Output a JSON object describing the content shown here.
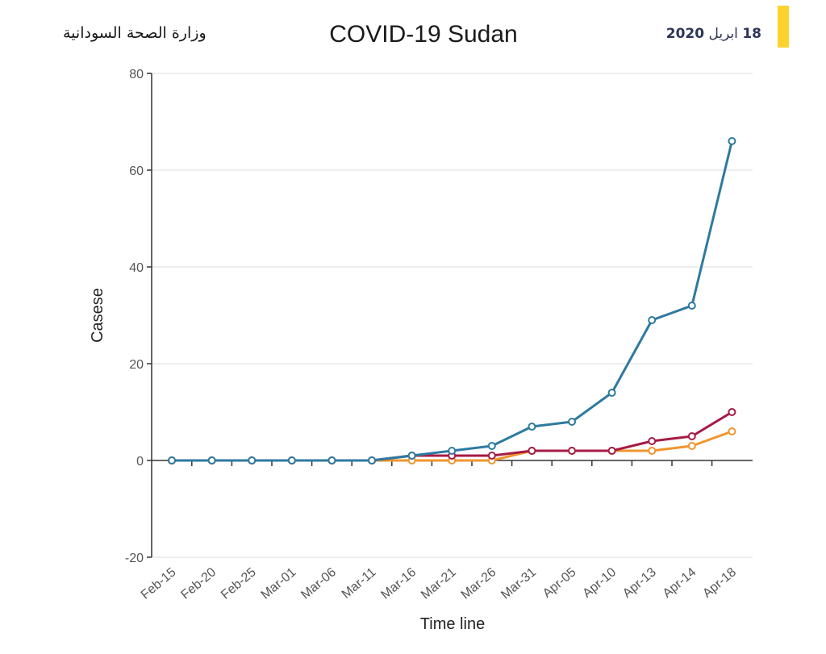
{
  "header": {
    "ministry": "وزارة الصحة السودانية",
    "date_day": "18",
    "date_month": "ابريل",
    "date_year": "2020",
    "accent_color": "#fcd22e"
  },
  "chart_data": {
    "type": "line",
    "title": "COVID-19 Sudan",
    "xlabel": "Time line",
    "ylabel": "Casese",
    "ylim": [
      -20,
      80
    ],
    "yticks": [
      -20,
      0,
      20,
      40,
      60,
      80
    ],
    "grid": true,
    "categories": [
      "Feb-15",
      "Feb-20",
      "Feb-25",
      "Mar-01",
      "Mar-06",
      "Mar-11",
      "Mar-16",
      "Mar-21",
      "Mar-26",
      "Mar-31",
      "Apr-05",
      "Apr-10",
      "Apr-13",
      "Apr-14",
      "Apr-18"
    ],
    "series": [
      {
        "name": "series-blue",
        "color": "#2e7aa0",
        "values": [
          0,
          0,
          0,
          0,
          0,
          0,
          1,
          2,
          3,
          7,
          8,
          14,
          29,
          32,
          66
        ]
      },
      {
        "name": "series-red",
        "color": "#a51c45",
        "values": [
          0,
          0,
          0,
          0,
          0,
          0,
          1,
          1,
          1,
          2,
          2,
          2,
          4,
          5,
          10
        ]
      },
      {
        "name": "series-orange",
        "color": "#f0952e",
        "values": [
          0,
          0,
          0,
          0,
          0,
          0,
          0,
          0,
          0,
          2,
          2,
          2,
          2,
          3,
          6
        ]
      }
    ]
  }
}
